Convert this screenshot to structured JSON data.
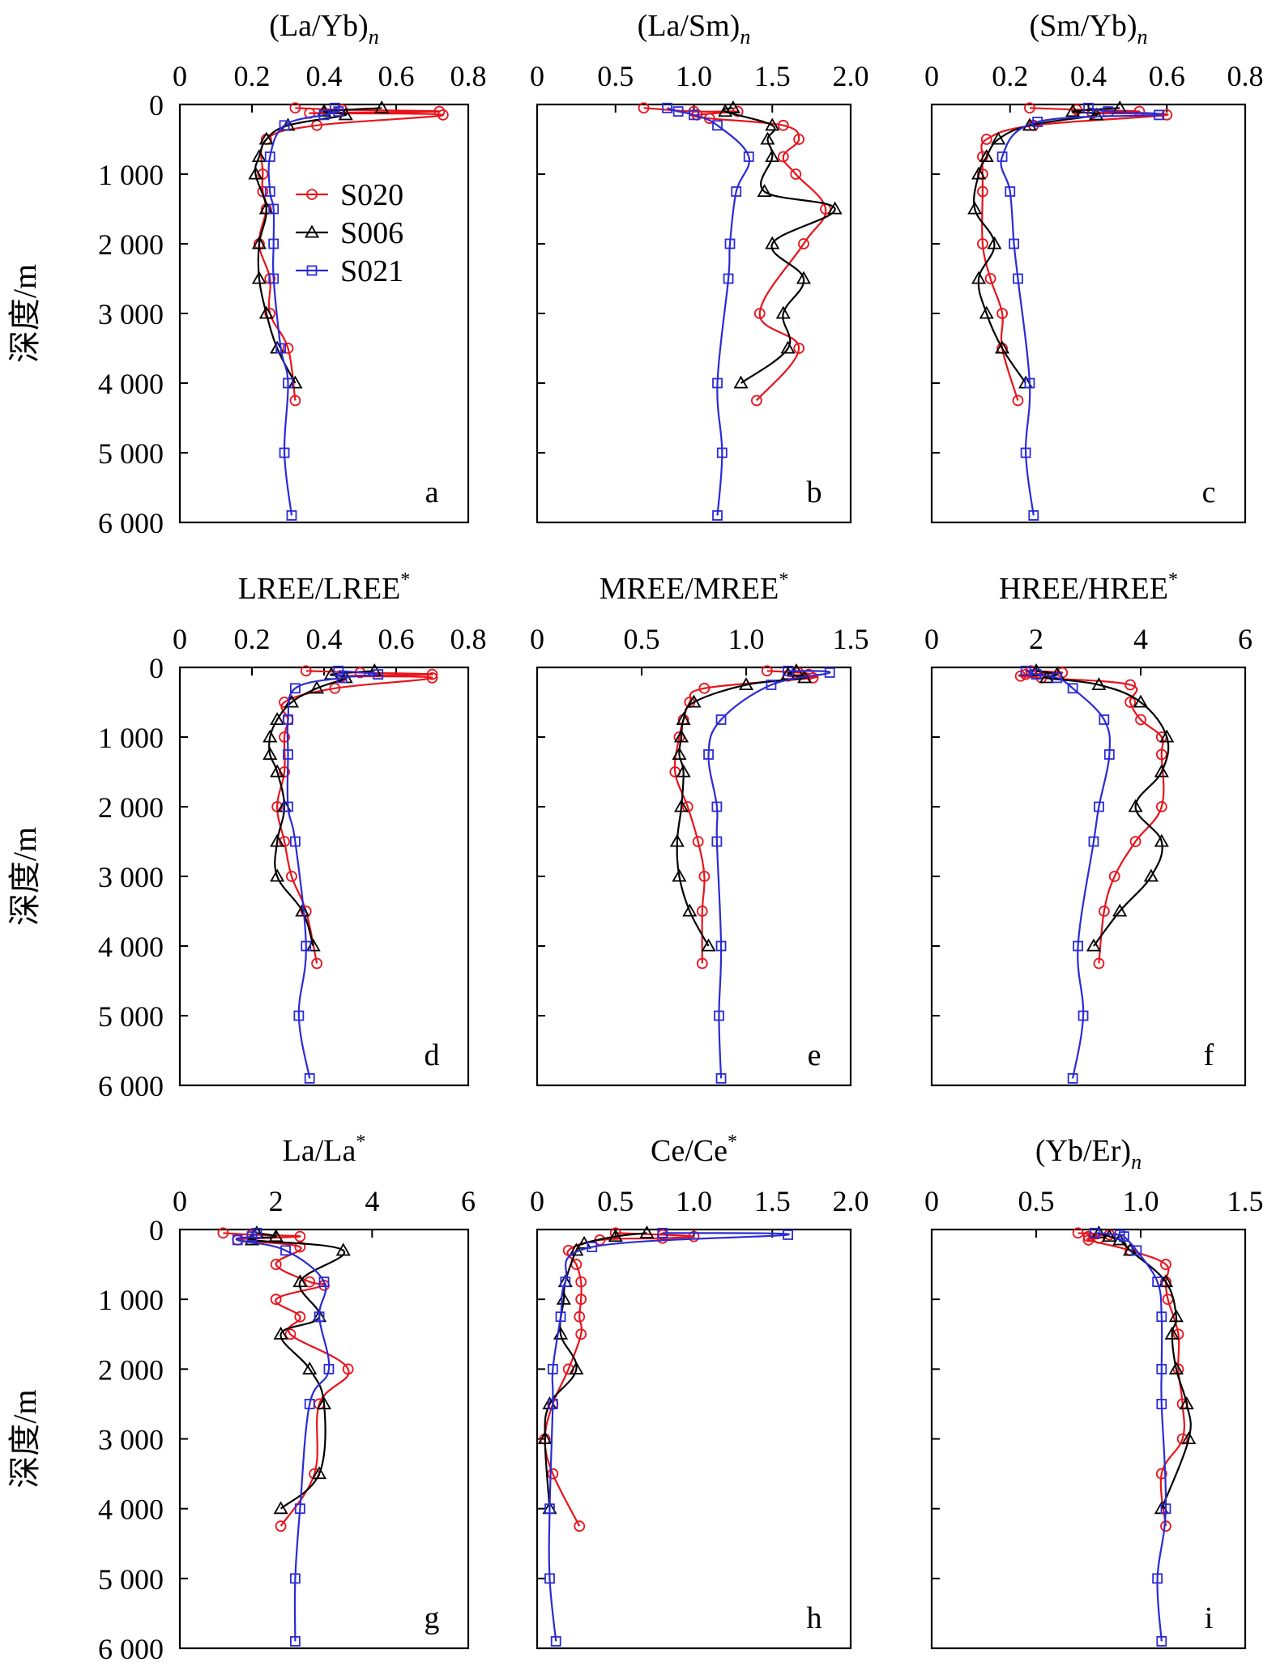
{
  "figure": {
    "y_axis_label": "深度/m",
    "legend": [
      {
        "name": "S020",
        "color": "#e8141c",
        "marker": "circle"
      },
      {
        "name": "S006",
        "color": "#000000",
        "marker": "triangle"
      },
      {
        "name": "S021",
        "color": "#2b2bd6",
        "marker": "square"
      }
    ]
  },
  "chart_data": [
    {
      "type": "line",
      "panel": "a",
      "title": "(La/Yb)",
      "title_sub": "n",
      "title_sup": "",
      "xlim": [
        0,
        0.8
      ],
      "xticks": [
        "0",
        "0.2",
        "0.4",
        "0.6",
        "0.8"
      ],
      "ylim": [
        0,
        6000
      ],
      "yticks": [
        "0",
        "1 000",
        "2 000",
        "3 000",
        "4 000",
        "5 000",
        "6 000"
      ],
      "series": [
        {
          "name": "S020",
          "x": [
            0.32,
            0.45,
            0.72,
            0.36,
            0.73,
            0.38,
            0.24,
            0.23,
            0.23,
            0.24,
            0.22,
            0.25,
            0.25,
            0.3,
            0.32
          ],
          "y": [
            50,
            75,
            100,
            125,
            150,
            300,
            500,
            1000,
            1250,
            1500,
            2000,
            2500,
            3000,
            3500,
            4250
          ]
        },
        {
          "name": "S006",
          "x": [
            0.56,
            0.4,
            0.46,
            0.3,
            0.24,
            0.22,
            0.21,
            0.24,
            0.22,
            0.22,
            0.24,
            0.27,
            0.32
          ],
          "y": [
            50,
            100,
            150,
            300,
            500,
            750,
            1000,
            1500,
            2000,
            2500,
            3000,
            3500,
            4000
          ]
        },
        {
          "name": "S021",
          "x": [
            0.43,
            0.44,
            0.4,
            0.29,
            0.25,
            0.25,
            0.26,
            0.26,
            0.26,
            0.28,
            0.3,
            0.29,
            0.31
          ],
          "y": [
            50,
            100,
            150,
            300,
            750,
            1250,
            1500,
            2000,
            2500,
            3500,
            4000,
            5000,
            5900
          ]
        }
      ]
    },
    {
      "type": "line",
      "panel": "b",
      "title": "(La/Sm)",
      "title_sub": "n",
      "title_sup": "",
      "xlim": [
        0,
        2.0
      ],
      "xticks": [
        "0",
        "0.5",
        "1.0",
        "1.5",
        "2.0"
      ],
      "ylim": [
        0,
        6000
      ],
      "yticks": [
        "0",
        "1 000",
        "2 000",
        "3 000",
        "4 000",
        "5 000",
        "6 000"
      ],
      "series": [
        {
          "name": "S020",
          "x": [
            0.68,
            1.0,
            1.28,
            1.02,
            1.1,
            1.57,
            1.67,
            1.57,
            1.65,
            1.84,
            1.7,
            1.42,
            1.67,
            1.4
          ],
          "y": [
            50,
            100,
            100,
            150,
            200,
            300,
            500,
            750,
            1000,
            1500,
            2000,
            3000,
            3500,
            4250
          ]
        },
        {
          "name": "S006",
          "x": [
            1.25,
            1.2,
            1.5,
            1.47,
            1.5,
            1.45,
            1.9,
            1.5,
            1.7,
            1.57,
            1.6,
            1.3
          ],
          "y": [
            50,
            100,
            300,
            500,
            750,
            1250,
            1500,
            2000,
            2500,
            3000,
            3500,
            4000
          ]
        },
        {
          "name": "S021",
          "x": [
            0.83,
            0.9,
            1.0,
            1.15,
            1.35,
            1.27,
            1.23,
            1.22,
            1.15,
            1.18,
            1.15
          ],
          "y": [
            50,
            100,
            150,
            300,
            750,
            1250,
            2000,
            2500,
            4000,
            5000,
            5900
          ]
        }
      ]
    },
    {
      "type": "line",
      "panel": "c",
      "title": "(Sm/Yb)",
      "title_sub": "n",
      "title_sup": "",
      "xlim": [
        0,
        0.8
      ],
      "xticks": [
        "0",
        "0.2",
        "0.4",
        "0.6",
        "0.8"
      ],
      "ylim": [
        0,
        6000
      ],
      "yticks": [
        "0",
        "1 000",
        "2 000",
        "3 000",
        "4 000",
        "5 000",
        "6 000"
      ],
      "series": [
        {
          "name": "S020",
          "x": [
            0.25,
            0.37,
            0.53,
            0.41,
            0.6,
            0.26,
            0.14,
            0.13,
            0.13,
            0.13,
            0.13,
            0.15,
            0.18,
            0.18,
            0.22
          ],
          "y": [
            50,
            75,
            100,
            125,
            150,
            300,
            500,
            750,
            1000,
            1250,
            2000,
            2500,
            3000,
            3500,
            4250
          ]
        },
        {
          "name": "S006",
          "x": [
            0.48,
            0.36,
            0.42,
            0.25,
            0.17,
            0.14,
            0.12,
            0.11,
            0.16,
            0.12,
            0.14,
            0.18,
            0.24
          ],
          "y": [
            50,
            100,
            150,
            300,
            500,
            750,
            1000,
            1500,
            2000,
            2500,
            3000,
            3500,
            4000
          ]
        },
        {
          "name": "S021",
          "x": [
            0.4,
            0.45,
            0.58,
            0.27,
            0.18,
            0.2,
            0.21,
            0.22,
            0.25,
            0.24,
            0.26
          ],
          "y": [
            50,
            100,
            150,
            250,
            750,
            1250,
            2000,
            2500,
            4000,
            5000,
            5900
          ]
        }
      ]
    },
    {
      "type": "line",
      "panel": "d",
      "title": "LREE/LREE",
      "title_sub": "",
      "title_sup": "*",
      "xlim": [
        0,
        0.8
      ],
      "xticks": [
        "0",
        "0.2",
        "0.4",
        "0.6",
        "0.8"
      ],
      "ylim": [
        0,
        6000
      ],
      "yticks": [
        "0",
        "1 000",
        "2 000",
        "3 000",
        "4 000",
        "5 000",
        "6 000"
      ],
      "series": [
        {
          "name": "S020",
          "x": [
            0.35,
            0.5,
            0.7,
            0.45,
            0.7,
            0.43,
            0.29,
            0.3,
            0.29,
            0.29,
            0.27,
            0.29,
            0.31,
            0.35,
            0.38
          ],
          "y": [
            50,
            75,
            100,
            125,
            150,
            300,
            500,
            750,
            1000,
            1500,
            2000,
            2500,
            3000,
            3500,
            4250
          ]
        },
        {
          "name": "S006",
          "x": [
            0.54,
            0.42,
            0.46,
            0.38,
            0.31,
            0.27,
            0.25,
            0.25,
            0.27,
            0.29,
            0.27,
            0.27,
            0.34,
            0.37
          ],
          "y": [
            50,
            100,
            150,
            300,
            500,
            750,
            1000,
            1250,
            1500,
            2000,
            2500,
            3000,
            3500,
            4000
          ]
        },
        {
          "name": "S021",
          "x": [
            0.44,
            0.55,
            0.45,
            0.32,
            0.3,
            0.3,
            0.3,
            0.32,
            0.35,
            0.33,
            0.36
          ],
          "y": [
            50,
            100,
            150,
            300,
            750,
            1250,
            2000,
            2500,
            4000,
            5000,
            5900
          ]
        }
      ]
    },
    {
      "type": "line",
      "panel": "e",
      "title": "MREE/MREE",
      "title_sub": "",
      "title_sup": "*",
      "xlim": [
        0,
        1.5
      ],
      "xticks": [
        "0",
        "0.5",
        "1.0",
        "1.5"
      ],
      "ylim": [
        0,
        6000
      ],
      "yticks": [
        "0",
        "1 000",
        "2 000",
        "3 000",
        "4 000",
        "5 000",
        "6 000"
      ],
      "series": [
        {
          "name": "S020",
          "x": [
            1.1,
            1.25,
            1.3,
            1.2,
            1.32,
            0.8,
            0.73,
            0.7,
            0.68,
            0.66,
            0.72,
            0.77,
            0.8,
            0.79,
            0.79
          ],
          "y": [
            50,
            75,
            100,
            125,
            150,
            300,
            500,
            750,
            1000,
            1500,
            2000,
            2500,
            3000,
            3500,
            4250
          ]
        },
        {
          "name": "S006",
          "x": [
            1.24,
            1.2,
            1.28,
            1.0,
            0.75,
            0.7,
            0.69,
            0.68,
            0.7,
            0.69,
            0.67,
            0.68,
            0.73,
            0.82
          ],
          "y": [
            50,
            100,
            150,
            250,
            500,
            750,
            1000,
            1250,
            1500,
            2000,
            2500,
            3000,
            3500,
            4000
          ]
        },
        {
          "name": "S021",
          "x": [
            1.2,
            1.4,
            1.12,
            0.88,
            0.82,
            0.86,
            0.86,
            0.88,
            0.87,
            0.88
          ],
          "y": [
            50,
            75,
            250,
            750,
            1250,
            2000,
            2500,
            4000,
            5000,
            5900
          ]
        }
      ]
    },
    {
      "type": "line",
      "panel": "f",
      "title": "HREE/HREE",
      "title_sub": "",
      "title_sup": "*",
      "xlim": [
        0,
        6
      ],
      "xticks": [
        "0",
        "2",
        "4",
        "6"
      ],
      "ylim": [
        0,
        6000
      ],
      "yticks": [
        "0",
        "1 000",
        "2 000",
        "3 000",
        "4 000",
        "5 000",
        "6 000"
      ],
      "series": [
        {
          "name": "S020",
          "x": [
            1.9,
            2.5,
            1.8,
            1.7,
            2.1,
            3.8,
            3.8,
            4.0,
            4.4,
            4.4,
            4.4,
            3.9,
            3.5,
            3.3,
            3.2
          ],
          "y": [
            50,
            75,
            100,
            125,
            150,
            250,
            500,
            750,
            1000,
            1250,
            2000,
            2500,
            3000,
            3500,
            4250
          ]
        },
        {
          "name": "S006",
          "x": [
            2.0,
            2.4,
            2.2,
            3.2,
            4.0,
            4.5,
            4.4,
            3.9,
            4.4,
            4.2,
            3.6,
            3.1
          ],
          "y": [
            50,
            100,
            150,
            250,
            500,
            1000,
            1500,
            2000,
            2500,
            3000,
            3500,
            4000
          ]
        },
        {
          "name": "S021",
          "x": [
            1.8,
            2.0,
            2.4,
            2.7,
            3.3,
            3.4,
            3.2,
            3.1,
            2.8,
            2.9,
            2.7
          ],
          "y": [
            50,
            100,
            150,
            300,
            750,
            1250,
            2000,
            2500,
            4000,
            5000,
            5900
          ]
        }
      ]
    },
    {
      "type": "line",
      "panel": "g",
      "title": "La/La",
      "title_sub": "",
      "title_sup": "*",
      "xlim": [
        0,
        6
      ],
      "xticks": [
        "0",
        "2",
        "4",
        "6"
      ],
      "ylim": [
        0,
        6000
      ],
      "yticks": [
        "0",
        "1 000",
        "2 000",
        "3 000",
        "4 000",
        "5 000",
        "6 000"
      ],
      "series": [
        {
          "name": "S020",
          "x": [
            0.9,
            1.5,
            2.5,
            1.2,
            2.5,
            2.0,
            2.7,
            3.0,
            2.0,
            2.5,
            2.3,
            3.5,
            2.9,
            2.8,
            2.1
          ],
          "y": [
            50,
            75,
            100,
            150,
            250,
            500,
            750,
            800,
            1000,
            1250,
            1500,
            2000,
            2500,
            3500,
            4250
          ]
        },
        {
          "name": "S006",
          "x": [
            1.6,
            2.0,
            1.5,
            3.4,
            2.5,
            2.9,
            2.1,
            2.7,
            3.0,
            2.9,
            2.1
          ],
          "y": [
            50,
            100,
            150,
            300,
            750,
            1250,
            1500,
            2000,
            2500,
            3500,
            4000
          ]
        },
        {
          "name": "S021",
          "x": [
            1.6,
            1.5,
            1.2,
            2.2,
            3.0,
            2.9,
            3.1,
            2.7,
            2.5,
            2.4,
            2.4
          ],
          "y": [
            50,
            100,
            150,
            300,
            750,
            1250,
            2000,
            2500,
            4000,
            5000,
            5900
          ]
        }
      ]
    },
    {
      "type": "line",
      "panel": "h",
      "title": "Ce/Ce",
      "title_sub": "",
      "title_sup": "*",
      "xlim": [
        0,
        2.0
      ],
      "xticks": [
        "0",
        "0.5",
        "1.0",
        "1.5",
        "2.0"
      ],
      "ylim": [
        0,
        6000
      ],
      "yticks": [
        "0",
        "1 000",
        "2 000",
        "3 000",
        "4 000",
        "5 000",
        "6 000"
      ],
      "series": [
        {
          "name": "S020",
          "x": [
            0.5,
            0.8,
            1.0,
            0.8,
            0.4,
            0.2,
            0.25,
            0.28,
            0.28,
            0.27,
            0.28,
            0.2,
            0.1,
            0.05,
            0.1,
            0.27
          ],
          "y": [
            50,
            75,
            100,
            125,
            150,
            300,
            500,
            750,
            1000,
            1250,
            1500,
            2000,
            2500,
            3000,
            3500,
            4250
          ]
        },
        {
          "name": "S006",
          "x": [
            0.7,
            0.5,
            0.3,
            0.25,
            0.18,
            0.17,
            0.15,
            0.25,
            0.08,
            0.05,
            0.08
          ],
          "y": [
            50,
            100,
            200,
            300,
            750,
            1000,
            1500,
            2000,
            2500,
            3000,
            4000
          ]
        },
        {
          "name": "S021",
          "x": [
            0.8,
            1.6,
            0.35,
            0.18,
            0.15,
            0.1,
            0.1,
            0.08,
            0.08,
            0.12
          ],
          "y": [
            50,
            75,
            250,
            750,
            1250,
            2000,
            2500,
            4000,
            5000,
            5900
          ]
        }
      ]
    },
    {
      "type": "line",
      "panel": "i",
      "title": "(Yb/Er)",
      "title_sub": "n",
      "title_sup": "",
      "xlim": [
        0,
        1.5
      ],
      "xticks": [
        "0",
        "0.5",
        "1.0",
        "1.5"
      ],
      "ylim": [
        0,
        6000
      ],
      "yticks": [
        "0",
        "1 000",
        "2 000",
        "3 000",
        "4 000",
        "5 000",
        "6 000"
      ],
      "series": [
        {
          "name": "S020",
          "x": [
            0.7,
            0.85,
            0.75,
            0.8,
            0.75,
            0.95,
            1.12,
            1.12,
            1.13,
            1.18,
            1.18,
            1.2,
            1.2,
            1.1,
            1.12
          ],
          "y": [
            50,
            75,
            100,
            125,
            150,
            300,
            500,
            750,
            1000,
            1500,
            2000,
            2500,
            3000,
            3500,
            4250
          ]
        },
        {
          "name": "S006",
          "x": [
            0.8,
            0.85,
            0.9,
            0.95,
            1.12,
            1.17,
            1.15,
            1.17,
            1.22,
            1.23,
            1.1
          ],
          "y": [
            50,
            100,
            150,
            300,
            750,
            1250,
            1500,
            2000,
            2500,
            3000,
            4000
          ]
        },
        {
          "name": "S021",
          "x": [
            0.78,
            0.9,
            0.92,
            0.98,
            1.08,
            1.1,
            1.1,
            1.1,
            1.12,
            1.08,
            1.1
          ],
          "y": [
            50,
            75,
            100,
            300,
            750,
            1250,
            2000,
            2500,
            4000,
            5000,
            5900
          ]
        }
      ]
    }
  ]
}
